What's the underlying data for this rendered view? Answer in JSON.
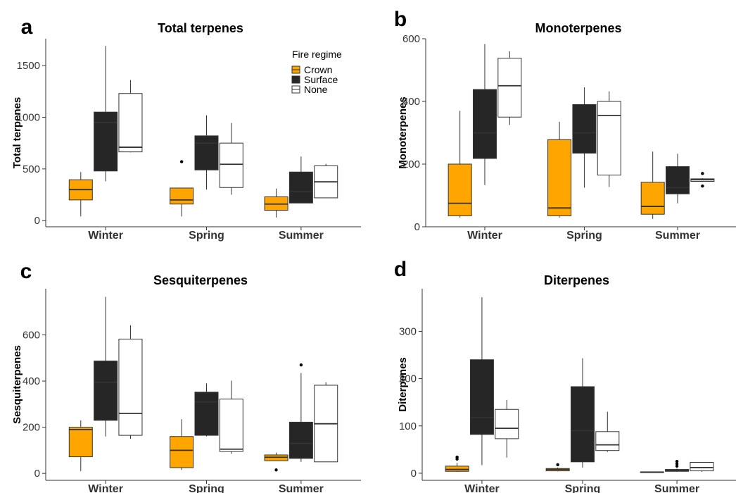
{
  "chart_data": [
    {
      "type": "box",
      "panel_label": "a",
      "title": "Total terpenes",
      "ylabel": "Total terpenes",
      "xlabel": "",
      "ylim": [
        -60,
        1760
      ],
      "yticks": [
        0,
        500,
        1000,
        1500
      ],
      "categories": [
        "Winter",
        "Spring",
        "Summer"
      ],
      "legend": {
        "title": "Fire regime",
        "position": "top-right",
        "entries": [
          "Crown",
          "Surface",
          "None"
        ]
      },
      "series": [
        {
          "name": "Crown",
          "color": "#FFA500",
          "boxes": [
            {
              "min": 40,
              "q1": 200,
              "median": 300,
              "q3": 395,
              "max": 470,
              "outliers": []
            },
            {
              "min": 40,
              "q1": 160,
              "median": 200,
              "q3": 315,
              "max": 315,
              "outliers": [
                570
              ]
            },
            {
              "min": 30,
              "q1": 100,
              "median": 160,
              "q3": 230,
              "max": 310,
              "outliers": []
            }
          ]
        },
        {
          "name": "Surface",
          "color": "#262626",
          "boxes": [
            {
              "min": 380,
              "q1": 480,
              "median": 950,
              "q3": 1050,
              "max": 1690,
              "outliers": []
            },
            {
              "min": 300,
              "q1": 490,
              "median": 750,
              "q3": 820,
              "max": 1020,
              "outliers": []
            },
            {
              "min": 170,
              "q1": 170,
              "median": 280,
              "q3": 470,
              "max": 620,
              "outliers": []
            }
          ]
        },
        {
          "name": "None",
          "color": "#FFFFFF",
          "boxes": [
            {
              "min": 660,
              "q1": 665,
              "median": 710,
              "q3": 1230,
              "max": 1360,
              "outliers": []
            },
            {
              "min": 250,
              "q1": 320,
              "median": 545,
              "q3": 750,
              "max": 945,
              "outliers": []
            },
            {
              "min": 220,
              "q1": 220,
              "median": 375,
              "q3": 530,
              "max": 550,
              "outliers": []
            }
          ]
        }
      ]
    },
    {
      "type": "box",
      "panel_label": "b",
      "title": "Monoterpenes",
      "ylabel": "Monoterpenes",
      "xlabel": "",
      "ylim": [
        0,
        600
      ],
      "yticks": [
        0,
        200,
        400,
        600
      ],
      "categories": [
        "Winter",
        "Spring",
        "Summer"
      ],
      "series": [
        {
          "name": "Crown",
          "color": "#FFA500",
          "boxes": [
            {
              "min": 30,
              "q1": 35,
              "median": 75,
              "q3": 200,
              "max": 370,
              "outliers": []
            },
            {
              "min": 30,
              "q1": 35,
              "median": 60,
              "q3": 278,
              "max": 335,
              "outliers": []
            },
            {
              "min": 25,
              "q1": 40,
              "median": 65,
              "q3": 142,
              "max": 240,
              "outliers": []
            }
          ]
        },
        {
          "name": "Surface",
          "color": "#262626",
          "boxes": [
            {
              "min": 133,
              "q1": 218,
              "median": 300,
              "q3": 438,
              "max": 583,
              "outliers": []
            },
            {
              "min": 125,
              "q1": 235,
              "median": 300,
              "q3": 390,
              "max": 445,
              "outliers": []
            },
            {
              "min": 75,
              "q1": 105,
              "median": 125,
              "q3": 192,
              "max": 233,
              "outliers": []
            }
          ]
        },
        {
          "name": "None",
          "color": "#FFFFFF",
          "boxes": [
            {
              "min": 325,
              "q1": 350,
              "median": 450,
              "q3": 538,
              "max": 560,
              "outliers": []
            },
            {
              "min": 127,
              "q1": 165,
              "median": 355,
              "q3": 400,
              "max": 432,
              "outliers": []
            },
            {
              "min": 143,
              "q1": 145,
              "median": 150,
              "q3": 153,
              "max": 155,
              "outliers": [
                170,
                130
              ]
            }
          ]
        }
      ]
    },
    {
      "type": "box",
      "panel_label": "c",
      "title": "Sesquiterpenes",
      "ylabel": "Sesquiterpenes",
      "xlabel": "",
      "ylim": [
        -30,
        800
      ],
      "yticks": [
        0,
        200,
        400,
        600
      ],
      "categories": [
        "Winter",
        "Spring",
        "Summer"
      ],
      "series": [
        {
          "name": "Crown",
          "color": "#FFA500",
          "boxes": [
            {
              "min": 10,
              "q1": 72,
              "median": 190,
              "q3": 200,
              "max": 230,
              "outliers": []
            },
            {
              "min": 15,
              "q1": 25,
              "median": 100,
              "q3": 160,
              "max": 235,
              "outliers": []
            },
            {
              "min": 55,
              "q1": 55,
              "median": 70,
              "q3": 80,
              "max": 90,
              "outliers": [
                15
              ]
            }
          ]
        },
        {
          "name": "Surface",
          "color": "#262626",
          "boxes": [
            {
              "min": 160,
              "q1": 230,
              "median": 395,
              "q3": 487,
              "max": 765,
              "outliers": []
            },
            {
              "min": 160,
              "q1": 165,
              "median": 310,
              "q3": 352,
              "max": 390,
              "outliers": []
            },
            {
              "min": 50,
              "q1": 65,
              "median": 130,
              "q3": 222,
              "max": 435,
              "outliers": [
                470
              ]
            }
          ]
        },
        {
          "name": "None",
          "color": "#FFFFFF",
          "boxes": [
            {
              "min": 150,
              "q1": 165,
              "median": 260,
              "q3": 582,
              "max": 642,
              "outliers": []
            },
            {
              "min": 85,
              "q1": 95,
              "median": 105,
              "q3": 322,
              "max": 402,
              "outliers": []
            },
            {
              "min": 50,
              "q1": 50,
              "median": 215,
              "q3": 382,
              "max": 395,
              "outliers": []
            }
          ]
        }
      ]
    },
    {
      "type": "box",
      "panel_label": "d",
      "title": "Diterpenes",
      "ylabel": "Diterpenes",
      "xlabel": "",
      "ylim": [
        -15,
        390
      ],
      "yticks": [
        0,
        100,
        200,
        300
      ],
      "categories": [
        "Winter",
        "Spring",
        "Summer"
      ],
      "series": [
        {
          "name": "Crown",
          "color": "#FFA500",
          "boxes": [
            {
              "min": 3,
              "q1": 4,
              "median": 8,
              "q3": 15,
              "max": 22,
              "outliers": [
                30,
                34
              ]
            },
            {
              "min": 4,
              "q1": 5,
              "median": 8,
              "q3": 10,
              "max": 12,
              "outliers": [
                18
              ]
            },
            {
              "min": 1,
              "q1": 2,
              "median": 2,
              "q3": 3,
              "max": 3,
              "outliers": []
            }
          ]
        },
        {
          "name": "Surface",
          "color": "#262626",
          "boxes": [
            {
              "min": 17,
              "q1": 82,
              "median": 118,
              "q3": 240,
              "max": 372,
              "outliers": []
            },
            {
              "min": 12,
              "q1": 24,
              "median": 90,
              "q3": 183,
              "max": 243,
              "outliers": []
            },
            {
              "min": 3,
              "q1": 4,
              "median": 6,
              "q3": 8,
              "max": 10,
              "outliers": [
                15,
                20,
                25
              ]
            }
          ]
        },
        {
          "name": "None",
          "color": "#FFFFFF",
          "boxes": [
            {
              "min": 33,
              "q1": 73,
              "median": 95,
              "q3": 135,
              "max": 155,
              "outliers": []
            },
            {
              "min": 45,
              "q1": 48,
              "median": 60,
              "q3": 88,
              "max": 130,
              "outliers": []
            },
            {
              "min": 3,
              "q1": 5,
              "median": 12,
              "q3": 23,
              "max": 23,
              "outliers": []
            }
          ]
        }
      ]
    }
  ]
}
